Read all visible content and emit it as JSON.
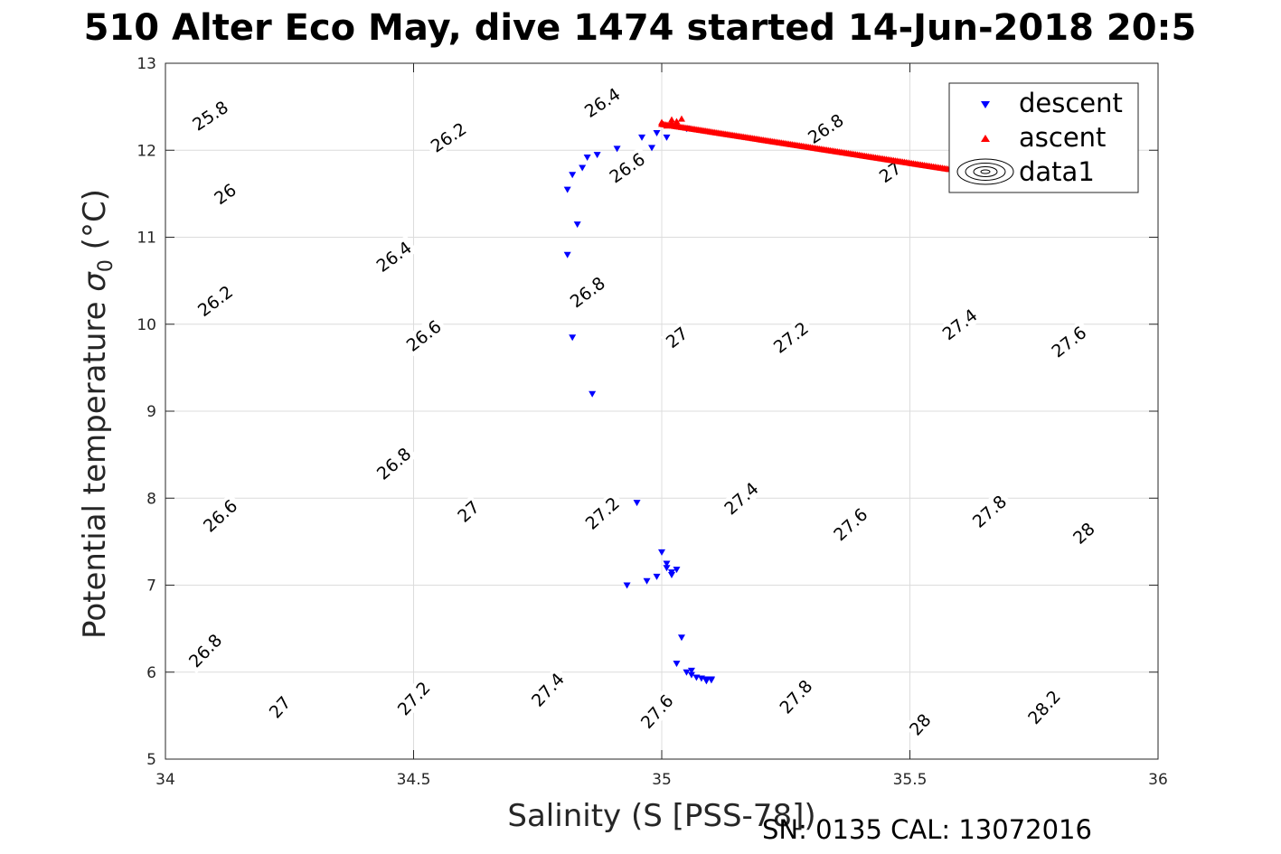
{
  "chart_data": {
    "type": "scatter",
    "title": "510 Alter Eco May, dive 1474 started 14-Jun-2018 20:5",
    "xlabel": "Salinity (S [PSS-78])",
    "ylabel_main": "Potential temperature ",
    "ylabel_sigma": "σ",
    "ylabel_sub": "0",
    "ylabel_unit": " (°C)",
    "footnote": "SN: 0135  CAL: 13072016",
    "xlim": [
      34,
      36
    ],
    "ylim": [
      5,
      13
    ],
    "xticks": [
      34,
      34.5,
      35,
      35.5,
      36
    ],
    "xtick_labels": [
      "34",
      "34.5",
      "35",
      "35.5",
      "36"
    ],
    "yticks": [
      5,
      6,
      7,
      8,
      9,
      10,
      11,
      12,
      13
    ],
    "ytick_labels": [
      "5",
      "6",
      "7",
      "8",
      "9",
      "10",
      "11",
      "12",
      "13"
    ],
    "grid": true,
    "legend": {
      "position": "top-right",
      "entries": [
        {
          "label": "descent",
          "marker": "triangle-down",
          "color": "#0000ff"
        },
        {
          "label": "ascent",
          "marker": "triangle-up",
          "color": "#ff0000"
        },
        {
          "label": "data1",
          "marker": "contour",
          "color": "#000000"
        }
      ]
    },
    "contours": {
      "density_levels": [
        25.8,
        26.0,
        26.2,
        26.4,
        26.6,
        26.8,
        27.0,
        27.2,
        27.4,
        27.6,
        27.8,
        28.0,
        28.2
      ],
      "line_color": "#000000",
      "labels": [
        {
          "text": "25.8",
          "s": 34.09,
          "t": 12.4
        },
        {
          "text": "26.2",
          "s": 34.57,
          "t": 12.15
        },
        {
          "text": "26.4",
          "s": 34.88,
          "t": 12.55
        },
        {
          "text": "26",
          "s": 34.12,
          "t": 11.5
        },
        {
          "text": "26.8",
          "s": 35.33,
          "t": 12.25
        },
        {
          "text": "26.6",
          "s": 34.93,
          "t": 11.8
        },
        {
          "text": "27",
          "s": 35.46,
          "t": 11.75
        },
        {
          "text": "26.4",
          "s": 34.46,
          "t": 10.78
        },
        {
          "text": "26.2",
          "s": 34.1,
          "t": 10.27
        },
        {
          "text": "26.8",
          "s": 34.85,
          "t": 10.37
        },
        {
          "text": "26.6",
          "s": 34.52,
          "t": 9.87
        },
        {
          "text": "27",
          "s": 35.03,
          "t": 9.85
        },
        {
          "text": "27.2",
          "s": 35.26,
          "t": 9.85
        },
        {
          "text": "27.4",
          "s": 35.6,
          "t": 10.0
        },
        {
          "text": "27.6",
          "s": 35.82,
          "t": 9.8
        },
        {
          "text": "26.8",
          "s": 34.46,
          "t": 8.4
        },
        {
          "text": "26.6",
          "s": 34.11,
          "t": 7.8
        },
        {
          "text": "27",
          "s": 34.61,
          "t": 7.85
        },
        {
          "text": "27.2",
          "s": 34.88,
          "t": 7.83
        },
        {
          "text": "27.4",
          "s": 35.16,
          "t": 8.0
        },
        {
          "text": "27.6",
          "s": 35.38,
          "t": 7.7
        },
        {
          "text": "27.8",
          "s": 35.66,
          "t": 7.85
        },
        {
          "text": "28",
          "s": 35.85,
          "t": 7.6
        },
        {
          "text": "26.8",
          "s": 34.08,
          "t": 6.25
        },
        {
          "text": "27",
          "s": 34.23,
          "t": 5.6
        },
        {
          "text": "27.2",
          "s": 34.5,
          "t": 5.7
        },
        {
          "text": "27.4",
          "s": 34.77,
          "t": 5.8
        },
        {
          "text": "27.6",
          "s": 34.99,
          "t": 5.55
        },
        {
          "text": "27.8",
          "s": 35.27,
          "t": 5.72
        },
        {
          "text": "28",
          "s": 35.52,
          "t": 5.4
        },
        {
          "text": "28.2",
          "s": 35.77,
          "t": 5.6
        }
      ]
    },
    "series": [
      {
        "name": "descent",
        "marker": "triangle-down",
        "color": "#0000ff",
        "x": [
          34.81,
          34.83,
          34.81,
          34.82,
          34.86,
          34.82,
          34.84,
          34.85,
          34.87,
          34.91,
          34.96,
          34.98,
          34.99,
          35.05,
          35.01,
          34.95,
          34.93,
          34.97,
          34.99,
          35.0,
          35.01,
          35.02,
          35.03,
          35.02,
          35.01,
          35.04,
          35.03,
          35.05,
          35.06,
          35.07,
          35.08,
          35.09,
          35.1,
          35.1,
          35.09,
          35.06
        ],
        "y": [
          11.55,
          11.15,
          10.8,
          9.85,
          9.2,
          11.72,
          11.8,
          11.92,
          11.95,
          12.02,
          12.15,
          12.03,
          12.2,
          12.25,
          12.15,
          7.95,
          7.0,
          7.05,
          7.1,
          7.38,
          7.2,
          7.15,
          7.18,
          7.12,
          7.25,
          6.4,
          6.1,
          6.0,
          5.97,
          5.94,
          5.93,
          5.92,
          5.92,
          5.91,
          5.9,
          6.02
        ]
      },
      {
        "name": "ascent",
        "marker": "triangle-up",
        "color": "#ff0000",
        "x_start": 35.0,
        "x_end": 35.58,
        "y_start": 12.3,
        "y_end": 11.78,
        "count": 160,
        "initial_x": [
          35.0,
          35.01,
          35.02,
          35.03,
          35.04,
          35.03,
          35.02
        ],
        "initial_y": [
          12.32,
          12.28,
          12.35,
          12.33,
          12.36,
          12.3,
          12.31
        ]
      }
    ]
  }
}
